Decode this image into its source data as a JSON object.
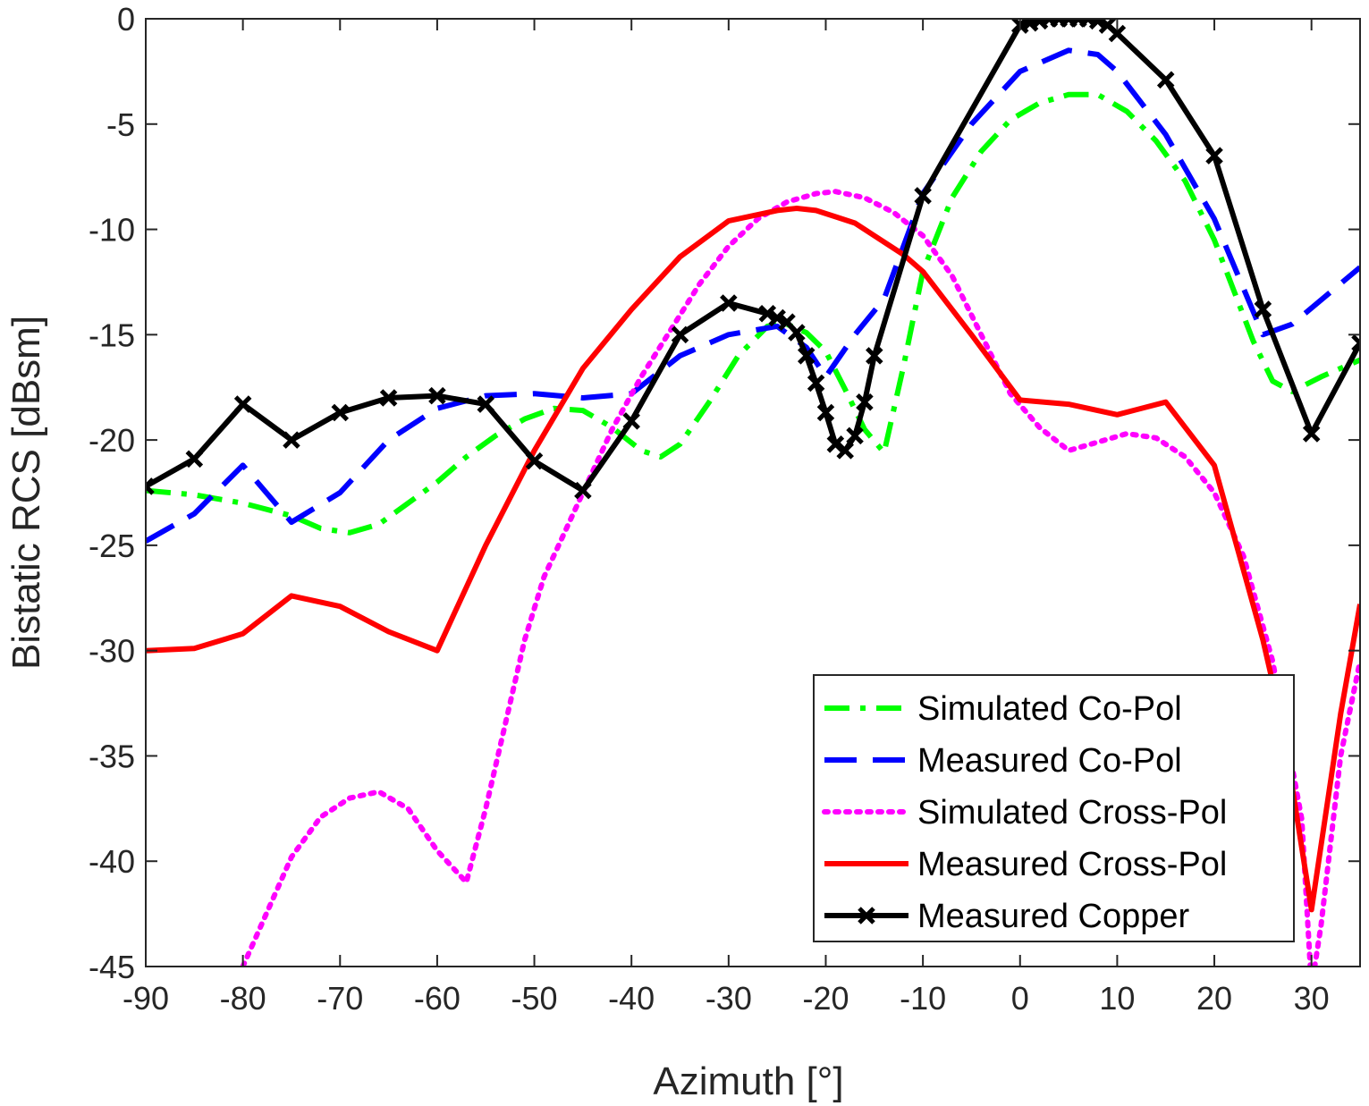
{
  "chart_data": {
    "type": "line",
    "title": "",
    "xlabel": "Azimuth [°]",
    "ylabel": "Bistatic RCS [dBsm]",
    "xlim": [
      -90,
      35
    ],
    "ylim": [
      -45,
      0
    ],
    "xticks": [
      -90,
      -80,
      -70,
      -60,
      -50,
      -40,
      -30,
      -20,
      -10,
      0,
      10,
      20,
      30
    ],
    "yticks": [
      0,
      -5,
      -10,
      -15,
      -20,
      -25,
      -30,
      -35,
      -40,
      -45
    ],
    "grid": false,
    "legend_position": "bottom-right",
    "series": [
      {
        "name": "Simulated Co-Pol",
        "color": "#00ff00",
        "style": "dash-dot",
        "x": [
          -90,
          -85,
          -80,
          -75,
          -72,
          -69,
          -66,
          -63,
          -60,
          -57,
          -54,
          -51,
          -48,
          -45,
          -42,
          -39,
          -37,
          -35,
          -32,
          -29,
          -26,
          -24,
          -22,
          -20,
          -18,
          -16,
          -14,
          -12,
          -10,
          -7,
          -4,
          -1,
          2,
          5,
          8,
          11,
          14,
          17,
          20,
          22,
          24,
          26,
          28,
          31,
          35
        ],
        "values": [
          -22.4,
          -22.6,
          -23.0,
          -23.6,
          -24.2,
          -24.4,
          -24.0,
          -23.0,
          -22.0,
          -20.8,
          -19.8,
          -19.0,
          -18.5,
          -18.6,
          -19.4,
          -20.5,
          -20.8,
          -20.2,
          -18.2,
          -16.0,
          -14.6,
          -14.5,
          -14.9,
          -15.8,
          -17.6,
          -19.5,
          -20.6,
          -16.5,
          -12.0,
          -8.5,
          -6.3,
          -4.8,
          -4.0,
          -3.6,
          -3.6,
          -4.4,
          -5.8,
          -7.7,
          -10.5,
          -12.9,
          -15.3,
          -17.2,
          -17.7,
          -17.0,
          -16.2
        ]
      },
      {
        "name": "Measured Co-Pol",
        "color": "#0000ff",
        "style": "dash",
        "x": [
          -90,
          -85,
          -80,
          -75,
          -70,
          -65,
          -60,
          -55,
          -50,
          -45,
          -40,
          -35,
          -30,
          -25,
          -22,
          -20,
          -17,
          -14,
          -10,
          -5,
          0,
          5,
          8,
          10,
          15,
          20,
          25,
          28,
          35
        ],
        "values": [
          -24.8,
          -23.5,
          -21.2,
          -23.9,
          -22.5,
          -20.0,
          -18.5,
          -17.9,
          -17.8,
          -18.0,
          -17.8,
          -16.0,
          -15.0,
          -14.6,
          -15.6,
          -17.0,
          -15.0,
          -13.3,
          -8.3,
          -5.0,
          -2.5,
          -1.5,
          -1.7,
          -2.5,
          -5.5,
          -9.5,
          -15.0,
          -14.5,
          -11.8
        ]
      },
      {
        "name": "Simulated Cross-Pol",
        "color": "#ff00ff",
        "style": "dot",
        "x": [
          -80,
          -75,
          -72,
          -69,
          -66,
          -63,
          -60,
          -57,
          -55,
          -53,
          -51,
          -49,
          -47,
          -45,
          -42,
          -39,
          -36,
          -33,
          -30,
          -27,
          -24,
          -21,
          -19,
          -16,
          -13,
          -10,
          -7,
          -4,
          -1,
          2,
          5,
          8,
          11,
          14,
          17,
          20,
          23,
          26,
          29,
          30,
          31,
          33,
          35
        ],
        "values": [
          -45.0,
          -39.8,
          -37.9,
          -37.0,
          -36.7,
          -37.5,
          -39.5,
          -41.0,
          -37.5,
          -33.5,
          -29.5,
          -26.5,
          -24.5,
          -22.5,
          -19.5,
          -17.0,
          -14.8,
          -12.6,
          -10.8,
          -9.5,
          -8.7,
          -8.3,
          -8.2,
          -8.5,
          -9.2,
          -10.3,
          -12.2,
          -15.0,
          -17.8,
          -19.4,
          -20.5,
          -20.1,
          -19.7,
          -19.9,
          -20.8,
          -22.5,
          -25.5,
          -30.5,
          -38.0,
          -46.0,
          -43.0,
          -35.0,
          -30.5
        ]
      },
      {
        "name": "Measured Cross-Pol",
        "color": "#ff0000",
        "style": "solid",
        "x": [
          -90,
          -85,
          -80,
          -75,
          -70,
          -65,
          -60,
          -55,
          -50,
          -45,
          -40,
          -35,
          -30,
          -25,
          -23,
          -21,
          -19,
          -17,
          -15,
          -12,
          -10,
          -5,
          0,
          5,
          10,
          15,
          20,
          25,
          27,
          30,
          33,
          35
        ],
        "values": [
          -30.0,
          -29.9,
          -29.2,
          -27.4,
          -27.9,
          -29.1,
          -30.0,
          -25.0,
          -20.5,
          -16.6,
          -13.8,
          -11.3,
          -9.6,
          -9.1,
          -9.0,
          -9.1,
          -9.4,
          -9.7,
          -10.3,
          -11.2,
          -12.0,
          -15.0,
          -18.1,
          -18.3,
          -18.8,
          -18.2,
          -21.2,
          -29.5,
          -33.5,
          -42.3,
          -33.0,
          -27.8
        ]
      },
      {
        "name": "Measured Copper",
        "color": "#000000",
        "style": "solid-x",
        "x": [
          -90,
          -85,
          -80,
          -75,
          -70,
          -65,
          -60,
          -55,
          -50,
          -45,
          -40,
          -35,
          -30,
          -26,
          -25,
          -24,
          -23,
          -22,
          -21,
          -20,
          -19,
          -18,
          -17,
          -16,
          -15,
          -10,
          0,
          1,
          2,
          3,
          4,
          5,
          6,
          7,
          8,
          9,
          10,
          15,
          20,
          25,
          30,
          35
        ],
        "values": [
          -22.2,
          -20.9,
          -18.3,
          -20.0,
          -18.7,
          -18.0,
          -17.9,
          -18.3,
          -21.0,
          -22.4,
          -19.1,
          -15.0,
          -13.5,
          -14.0,
          -14.2,
          -14.4,
          -14.9,
          -16.0,
          -17.3,
          -18.7,
          -20.2,
          -20.5,
          -19.8,
          -18.2,
          -16.0,
          -8.4,
          -0.3,
          -0.2,
          -0.1,
          0.0,
          0.0,
          0.0,
          0.0,
          0.0,
          -0.1,
          -0.3,
          -0.7,
          -2.9,
          -6.5,
          -13.8,
          -19.7,
          -15.4
        ]
      }
    ]
  }
}
